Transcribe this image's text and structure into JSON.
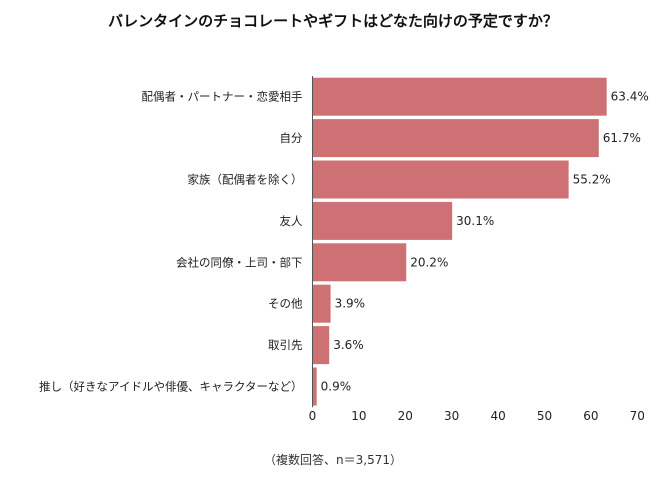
{
  "title": "バレンタインのチョコレートやギフトはどなた向けの予定ですか？",
  "footnote": "（複数回答、n＝3,571）",
  "colors": {
    "bar": "#CD7174",
    "axis": "#555555",
    "text": "#222222"
  },
  "chart_data": {
    "type": "bar",
    "orientation": "horizontal",
    "title": "バレンタインのチョコレートやギフトはどなた向けの予定ですか？",
    "categories": [
      "配偶者・パートナー・恋愛相手",
      "自分",
      "家族（配偶者を除く）",
      "友人",
      "会社の同僚・上司・部下",
      "その他",
      "取引先",
      "推し（好きなアイドルや俳優、キャラクターなど）"
    ],
    "values": [
      63.4,
      61.7,
      55.2,
      30.1,
      20.2,
      3.9,
      3.6,
      0.9
    ],
    "value_labels": [
      "63.4%",
      "61.7%",
      "55.2%",
      "30.1%",
      "20.2%",
      "3.9%",
      "3.6%",
      "0.9%"
    ],
    "xlim": [
      0,
      70
    ],
    "xticks": [
      0,
      10,
      20,
      30,
      40,
      50,
      60,
      70
    ],
    "grid": false,
    "legend": "none"
  }
}
